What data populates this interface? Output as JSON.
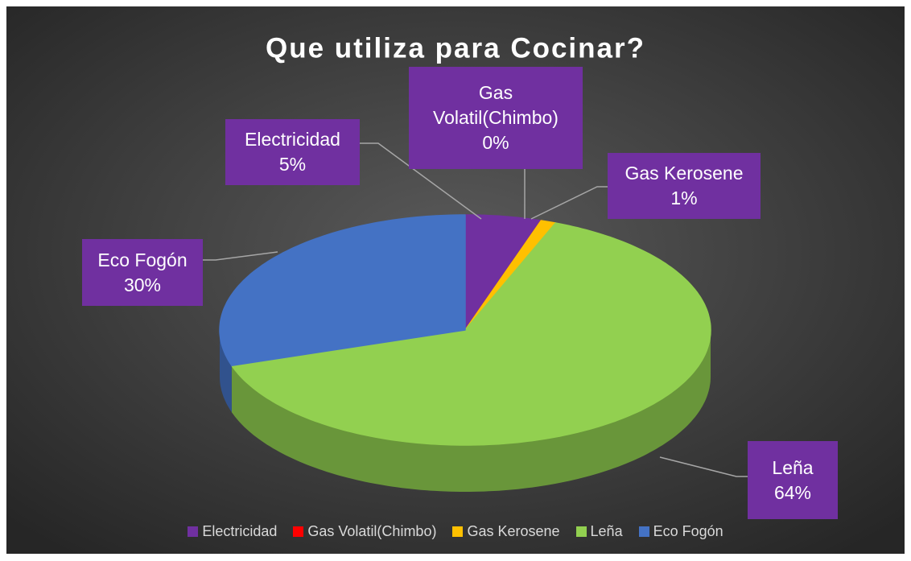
{
  "chart_data": {
    "type": "pie",
    "title": "Que utiliza para Cocinar?",
    "categories": [
      "Electricidad",
      "Gas Volatil(Chimbo)",
      "Gas Kerosene",
      "Leña",
      "Eco Fogón"
    ],
    "values": [
      5,
      0,
      1,
      64,
      30
    ],
    "value_labels": [
      "5%",
      "0%",
      "1%",
      "64%",
      "30%"
    ],
    "colors": [
      "#7030a0",
      "#ff0000",
      "#ffc000",
      "#92d050",
      "#4472c4"
    ],
    "legend": "bottom"
  }
}
